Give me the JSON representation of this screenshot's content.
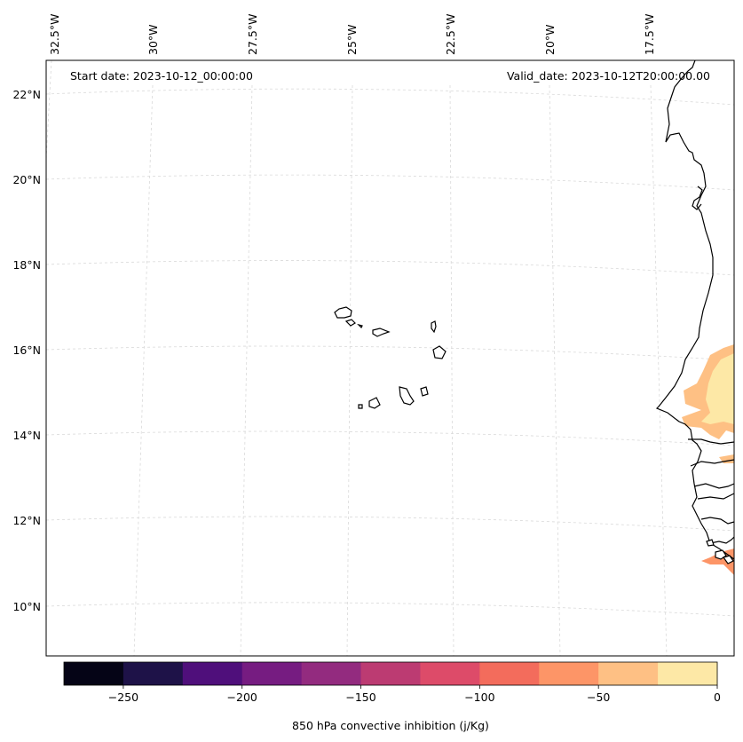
{
  "header": {
    "start_date": "Start date: 2023-10-12_00:00:00",
    "valid_date": "Valid_date: 2023-10-12T20:00:00.00"
  },
  "map": {
    "longitude_labels": [
      "32.5°W",
      "30°W",
      "27.5°W",
      "25°W",
      "22.5°W",
      "20°W",
      "17.5°W"
    ],
    "latitude_labels": [
      "22°N",
      "20°N",
      "18°N",
      "16°N",
      "14°N",
      "12°N",
      "10°N"
    ]
  },
  "colorbar": {
    "title": "850 hPa convective inhibition (j/Kg)",
    "tick_labels": [
      "−250",
      "−200",
      "−150",
      "−100",
      "−50",
      "0"
    ],
    "min": -275,
    "max": 0,
    "step": 25,
    "colors": [
      "#050416",
      "#1e1248",
      "#4f0f7b",
      "#761c81",
      "#932b7f",
      "#bc3b72",
      "#dd4b69",
      "#f36c5c",
      "#fd9567",
      "#fec084",
      "#fde8a6"
    ]
  },
  "fill_colors": {
    "light_orange": "#fec084",
    "pale_yellow": "#fde8a6",
    "salmon": "#fd9567"
  }
}
